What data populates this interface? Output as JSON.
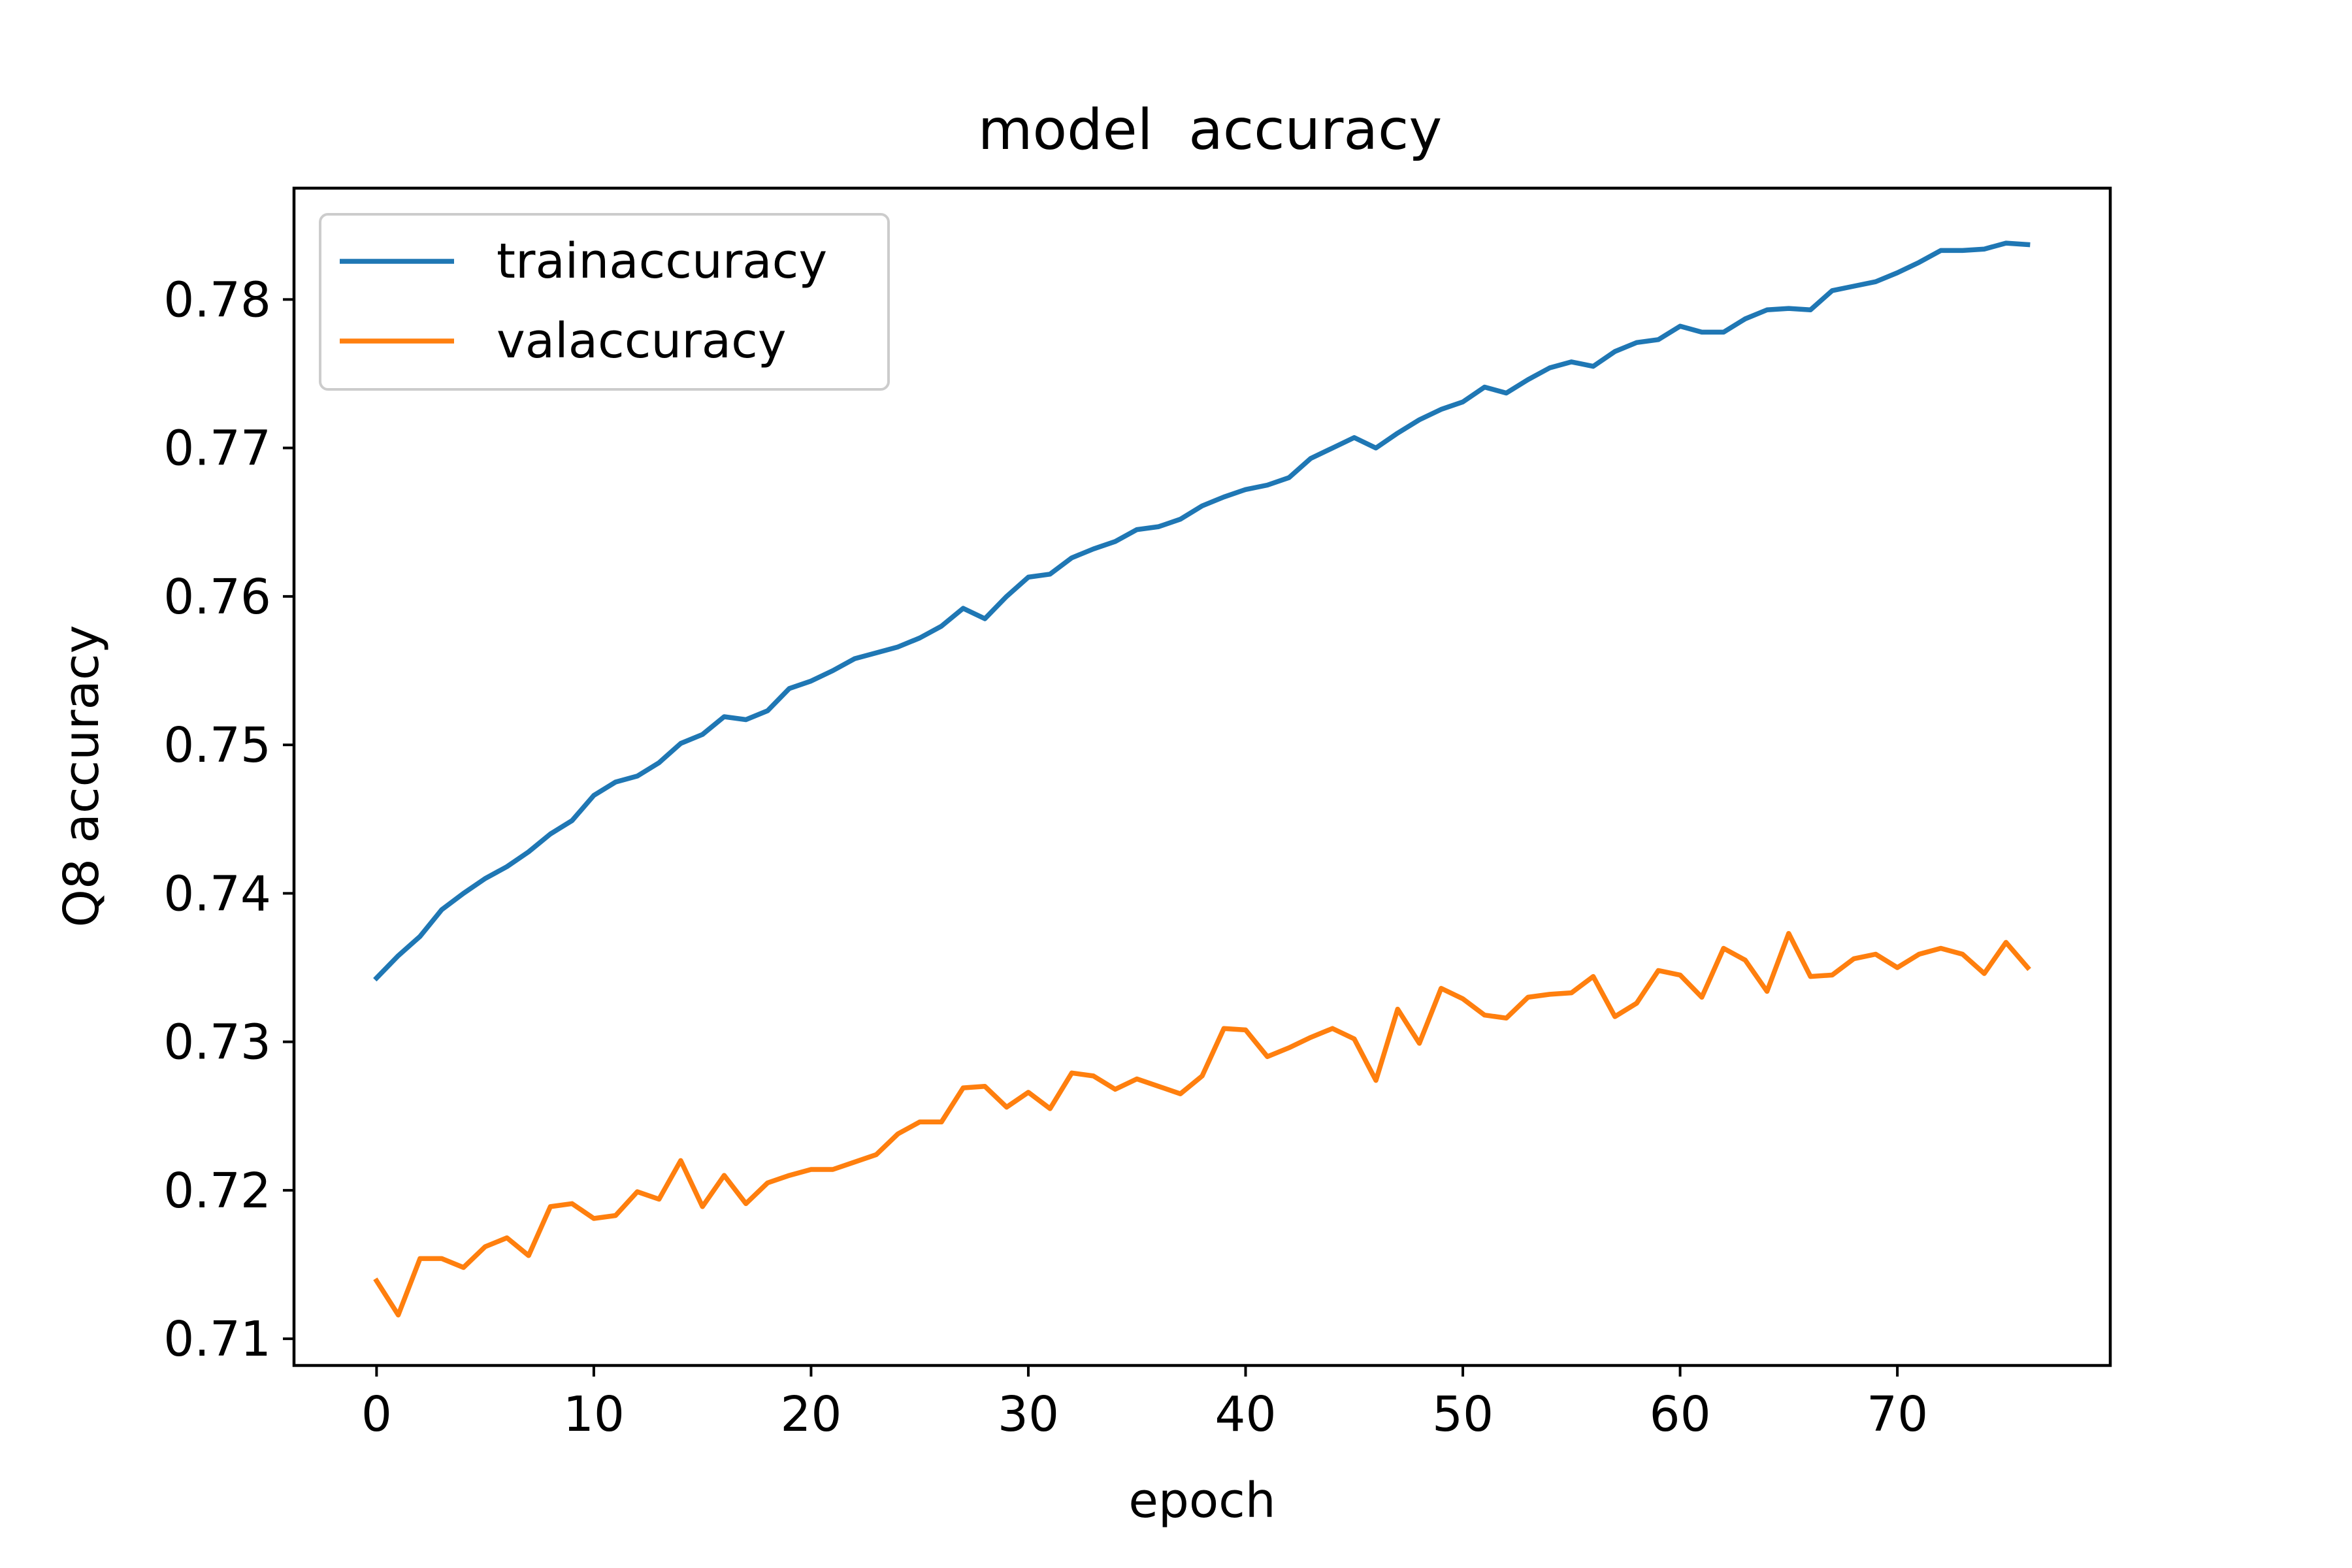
{
  "chart_data": {
    "type": "line",
    "title": "model  accuracy",
    "xlabel": "epoch",
    "ylabel": "Q8 accuracy",
    "xlim": [
      -3.8,
      79.8
    ],
    "ylim": [
      0.7082,
      0.7875
    ],
    "xticks": [
      0,
      10,
      20,
      30,
      40,
      50,
      60,
      70
    ],
    "yticks": [
      0.71,
      0.72,
      0.73,
      0.74,
      0.75,
      0.76,
      0.77,
      0.78
    ],
    "grid": false,
    "legend_position": "upper-left",
    "x": [
      0,
      1,
      2,
      3,
      4,
      5,
      6,
      7,
      8,
      9,
      10,
      11,
      12,
      13,
      14,
      15,
      16,
      17,
      18,
      19,
      20,
      21,
      22,
      23,
      24,
      25,
      26,
      27,
      28,
      29,
      30,
      31,
      32,
      33,
      34,
      35,
      36,
      37,
      38,
      39,
      40,
      41,
      42,
      43,
      44,
      45,
      46,
      47,
      48,
      49,
      50,
      51,
      52,
      53,
      54,
      55,
      56,
      57,
      58,
      59,
      60,
      61,
      62,
      63,
      64,
      65,
      66,
      67,
      68,
      69,
      70,
      71,
      72,
      73,
      74,
      75,
      76
    ],
    "series": [
      {
        "name": "trainaccuracy",
        "color": "#1f77b4",
        "values": [
          0.7343,
          0.7358,
          0.7371,
          0.7389,
          0.74,
          0.741,
          0.7418,
          0.7428,
          0.744,
          0.7449,
          0.7466,
          0.7475,
          0.7479,
          0.7488,
          0.7501,
          0.7507,
          0.7519,
          0.7517,
          0.7523,
          0.7538,
          0.7543,
          0.755,
          0.7558,
          0.7562,
          0.7566,
          0.7572,
          0.758,
          0.7592,
          0.7585,
          0.76,
          0.7613,
          0.7615,
          0.7626,
          0.7632,
          0.7637,
          0.7645,
          0.7647,
          0.7652,
          0.7661,
          0.7667,
          0.7672,
          0.7675,
          0.768,
          0.7693,
          0.77,
          0.7707,
          0.77,
          0.771,
          0.7719,
          0.7726,
          0.7731,
          0.7741,
          0.7737,
          0.7746,
          0.7754,
          0.7758,
          0.7755,
          0.7765,
          0.7771,
          0.7773,
          0.7782,
          0.7778,
          0.7778,
          0.7787,
          0.7793,
          0.7794,
          0.7793,
          0.7806,
          0.7809,
          0.7812,
          0.7818,
          0.7825,
          0.7833,
          0.7833,
          0.7834,
          0.7838,
          0.7837
        ]
      },
      {
        "name": "valaccuracy",
        "color": "#ff7f0e",
        "values": [
          0.7139,
          0.7116,
          0.7154,
          0.7154,
          0.7148,
          0.7162,
          0.7168,
          0.7156,
          0.7189,
          0.7191,
          0.7181,
          0.7183,
          0.7199,
          0.7194,
          0.722,
          0.7189,
          0.721,
          0.7191,
          0.7205,
          0.721,
          0.7214,
          0.7214,
          0.7219,
          0.7224,
          0.7238,
          0.7246,
          0.7246,
          0.7269,
          0.727,
          0.7256,
          0.7266,
          0.7255,
          0.7279,
          0.7277,
          0.7268,
          0.7275,
          0.727,
          0.7265,
          0.7277,
          0.7309,
          0.7308,
          0.729,
          0.7296,
          0.7303,
          0.7309,
          0.7302,
          0.7274,
          0.7322,
          0.7299,
          0.7336,
          0.7329,
          0.7318,
          0.7316,
          0.733,
          0.7332,
          0.7333,
          0.7344,
          0.7317,
          0.7326,
          0.7348,
          0.7345,
          0.733,
          0.7363,
          0.7355,
          0.7334,
          0.7373,
          0.7344,
          0.7345,
          0.7356,
          0.7359,
          0.735,
          0.7359,
          0.7363,
          0.7359,
          0.7346,
          0.7367,
          0.735
        ]
      }
    ]
  }
}
